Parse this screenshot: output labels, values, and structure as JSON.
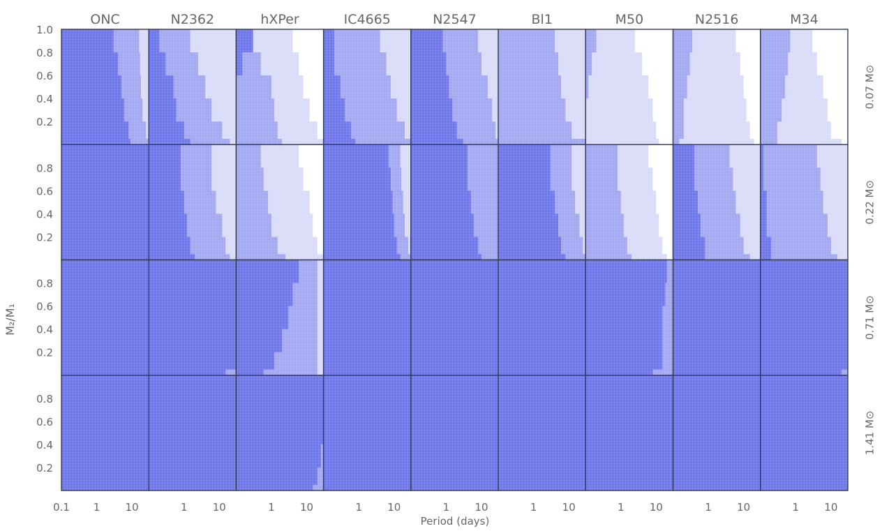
{
  "chart_data": {
    "type": "heatmap",
    "columns": [
      "ONC",
      "N2362",
      "hXPer",
      "IC4665",
      "N2547",
      "Bl1",
      "M50",
      "N2516",
      "M34"
    ],
    "rows": [
      "0.07 M⊙",
      "0.22 M⊙",
      "0.71 M⊙",
      "1.41 M⊙"
    ],
    "xlabel": "Period (days)",
    "ylabel": "M₂/M₁",
    "xscale": "log",
    "xlim": [
      0.1,
      30
    ],
    "ylim": [
      0,
      1.0
    ],
    "x_ticks_first_column": [
      "0.1",
      "1",
      "10"
    ],
    "x_ticks_other_columns": [
      "1",
      "10"
    ],
    "y_ticks_top_row": [
      "1.0",
      "0.8",
      "0.6",
      "0.4",
      "0.2"
    ],
    "y_ticks_other_rows": [
      "0.8",
      "0.6",
      "0.4",
      "0.2"
    ],
    "shade_colors": {
      "level3": "#6f77f0",
      "level2": "#a3a8f4",
      "level1": "#d9dbfa",
      "level0": "#ffffff"
    },
    "boundary_q": [
      0.05,
      0.2,
      0.4,
      0.6,
      0.8,
      1.0
    ],
    "panels": [
      [
        {
          "b3": [
            9,
            8,
            6,
            5,
            4,
            3
          ],
          "b2": [
            30,
            25,
            20,
            18,
            17,
            16
          ],
          "b1": [
            30,
            30,
            30,
            30,
            30,
            30
          ]
        },
        {
          "b3": [
            1.5,
            1,
            0.6,
            0.5,
            0.3,
            0.2
          ],
          "b2": [
            20,
            12,
            6,
            4,
            2.5,
            1.5
          ],
          "b1": [
            30,
            30,
            30,
            30,
            30,
            30
          ]
        },
        {
          "b3": [
            0.1,
            0.1,
            0.1,
            0.1,
            0.15,
            0.3
          ],
          "b2": [
            2,
            1.5,
            1.2,
            1,
            0.5,
            0.3
          ],
          "b1": [
            30,
            20,
            12,
            8,
            6,
            4
          ]
        },
        {
          "b3": [
            0.8,
            0.6,
            0.4,
            0.3,
            0.2,
            0.2
          ],
          "b2": [
            30,
            20,
            12,
            8,
            6,
            4
          ],
          "b1": [
            30,
            30,
            30,
            30,
            30,
            30
          ]
        },
        {
          "b3": [
            3,
            2,
            1.5,
            1.2,
            1,
            0.8
          ],
          "b2": [
            30,
            25,
            20,
            15,
            10,
            8
          ],
          "b1": [
            30,
            30,
            30,
            30,
            30,
            30
          ]
        },
        {
          "b3": [
            0.1,
            0.1,
            0.1,
            0.1,
            0.1,
            0.1
          ],
          "b2": [
            30,
            12,
            8,
            6,
            5,
            4
          ],
          "b1": [
            30,
            30,
            30,
            30,
            30,
            30
          ]
        },
        {
          "b3": [
            0.1,
            0.1,
            0.1,
            0.1,
            0.1,
            0.1
          ],
          "b2": [
            0.1,
            0.1,
            0.1,
            0.12,
            0.15,
            0.2
          ],
          "b1": [
            12,
            10,
            8,
            6,
            4,
            2.5
          ]
        },
        {
          "b3": [
            0.1,
            0.1,
            0.1,
            0.1,
            0.1,
            0.1
          ],
          "b2": [
            0.15,
            0.2,
            0.2,
            0.25,
            0.3,
            0.35
          ],
          "b1": [
            20,
            15,
            12,
            10,
            8,
            6
          ]
        },
        {
          "b3": [
            0.1,
            0.1,
            0.1,
            0.1,
            0.1,
            0.1
          ],
          "b2": [
            0.3,
            0.3,
            0.4,
            0.5,
            0.6,
            0.7
          ],
          "b1": [
            20,
            10,
            8,
            6,
            4,
            3
          ]
        }
      ],
      [
        {
          "b3": [
            30,
            30,
            30,
            30,
            30,
            30
          ],
          "b2": [
            30,
            30,
            30,
            30,
            30,
            30
          ],
          "b1": [
            30,
            30,
            30,
            30,
            30,
            30
          ]
        },
        {
          "b3": [
            2,
            1.5,
            1.2,
            1,
            0.8,
            0.8
          ],
          "b2": [
            20,
            15,
            12,
            8,
            6,
            6
          ],
          "b1": [
            30,
            30,
            30,
            30,
            30,
            30
          ]
        },
        {
          "b3": [
            0.1,
            0.1,
            0.1,
            0.1,
            0.1,
            0.1
          ],
          "b2": [
            2.5,
            1.5,
            1,
            0.8,
            0.6,
            0.5
          ],
          "b1": [
            30,
            20,
            15,
            12,
            8,
            6
          ]
        },
        {
          "b3": [
            15,
            12,
            10,
            9,
            8,
            7
          ],
          "b2": [
            30,
            25,
            20,
            18,
            16,
            15
          ],
          "b1": [
            30,
            30,
            30,
            30,
            30,
            30
          ]
        },
        {
          "b3": [
            10,
            8,
            6,
            5,
            4,
            4
          ],
          "b2": [
            30,
            30,
            30,
            30,
            30,
            30
          ],
          "b1": [
            30,
            30,
            30,
            30,
            30,
            30
          ]
        },
        {
          "b3": [
            8,
            6,
            5,
            4,
            3,
            3
          ],
          "b2": [
            30,
            25,
            20,
            15,
            12,
            12
          ],
          "b1": [
            30,
            30,
            30,
            30,
            30,
            30
          ]
        },
        {
          "b3": [
            0.1,
            0.1,
            0.1,
            0.1,
            0.1,
            0.1
          ],
          "b2": [
            2,
            1.5,
            1.2,
            1,
            0.8,
            0.8
          ],
          "b1": [
            20,
            15,
            12,
            10,
            8,
            6
          ]
        },
        {
          "b3": [
            0.8,
            0.8,
            0.6,
            0.5,
            0.4,
            0.4
          ],
          "b2": [
            15,
            10,
            8,
            6,
            5,
            4
          ],
          "b1": [
            30,
            30,
            30,
            30,
            30,
            30
          ]
        },
        {
          "b3": [
            0.2,
            0.2,
            0.15,
            0.15,
            0.12,
            0.12
          ],
          "b2": [
            15,
            10,
            8,
            6,
            5,
            4
          ],
          "b1": [
            30,
            30,
            30,
            30,
            30,
            30
          ]
        }
      ],
      [
        {
          "b3": [
            30,
            30,
            30,
            30,
            30,
            30
          ],
          "b2": [
            30,
            30,
            30,
            30,
            30,
            30
          ],
          "b1": [
            30,
            30,
            30,
            30,
            30,
            30
          ]
        },
        {
          "b3": [
            15,
            30,
            30,
            30,
            30,
            30
          ],
          "b2": [
            30,
            30,
            30,
            30,
            30,
            30
          ],
          "b1": [
            30,
            30,
            30,
            30,
            30,
            30
          ]
        },
        {
          "b3": [
            0.6,
            1.2,
            2,
            3,
            4,
            6
          ],
          "b2": [
            20,
            20,
            20,
            20,
            20,
            20
          ],
          "b1": [
            30,
            30,
            30,
            30,
            30,
            30
          ]
        },
        {
          "b3": [
            30,
            30,
            30,
            30,
            30,
            30
          ],
          "b2": [
            30,
            30,
            30,
            30,
            30,
            30
          ],
          "b1": [
            30,
            30,
            30,
            30,
            30,
            30
          ]
        },
        {
          "b3": [
            30,
            30,
            30,
            30,
            30,
            30
          ],
          "b2": [
            30,
            30,
            30,
            30,
            30,
            30
          ],
          "b1": [
            30,
            30,
            30,
            30,
            30,
            30
          ]
        },
        {
          "b3": [
            30,
            30,
            30,
            30,
            30,
            30
          ],
          "b2": [
            30,
            30,
            30,
            30,
            30,
            30
          ],
          "b1": [
            30,
            30,
            30,
            30,
            30,
            30
          ]
        },
        {
          "b3": [
            8,
            15,
            15,
            15,
            18,
            20
          ],
          "b2": [
            30,
            30,
            30,
            30,
            30,
            30
          ],
          "b1": [
            30,
            30,
            30,
            30,
            30,
            30
          ]
        },
        {
          "b3": [
            30,
            30,
            30,
            30,
            30,
            30
          ],
          "b2": [
            30,
            30,
            30,
            30,
            30,
            30
          ],
          "b1": [
            30,
            30,
            30,
            30,
            30,
            30
          ]
        },
        {
          "b3": [
            20,
            30,
            30,
            30,
            30,
            30
          ],
          "b2": [
            30,
            30,
            30,
            30,
            30,
            30
          ],
          "b1": [
            30,
            30,
            30,
            30,
            30,
            30
          ]
        }
      ],
      [
        {
          "b3": [
            30,
            30,
            30,
            30,
            30,
            30
          ],
          "b2": [
            30,
            30,
            30,
            30,
            30,
            30
          ],
          "b1": [
            30,
            30,
            30,
            30,
            30,
            30
          ]
        },
        {
          "b3": [
            30,
            30,
            30,
            30,
            30,
            30
          ],
          "b2": [
            30,
            30,
            30,
            30,
            30,
            30
          ],
          "b1": [
            30,
            30,
            30,
            30,
            30,
            30
          ]
        },
        {
          "b3": [
            15,
            20,
            25,
            30,
            30,
            30
          ],
          "b2": [
            30,
            30,
            30,
            30,
            30,
            30
          ],
          "b1": [
            30,
            30,
            30,
            30,
            30,
            30
          ]
        },
        {
          "b3": [
            30,
            30,
            30,
            30,
            30,
            30
          ],
          "b2": [
            30,
            30,
            30,
            30,
            30,
            30
          ],
          "b1": [
            30,
            30,
            30,
            30,
            30,
            30
          ]
        },
        {
          "b3": [
            30,
            30,
            30,
            30,
            30,
            30
          ],
          "b2": [
            30,
            30,
            30,
            30,
            30,
            30
          ],
          "b1": [
            30,
            30,
            30,
            30,
            30,
            30
          ]
        },
        {
          "b3": [
            30,
            30,
            30,
            30,
            30,
            30
          ],
          "b2": [
            30,
            30,
            30,
            30,
            30,
            30
          ],
          "b1": [
            30,
            30,
            30,
            30,
            30,
            30
          ]
        },
        {
          "b3": [
            30,
            30,
            30,
            30,
            30,
            30
          ],
          "b2": [
            30,
            30,
            30,
            30,
            30,
            30
          ],
          "b1": [
            30,
            30,
            30,
            30,
            30,
            30
          ]
        },
        {
          "b3": [
            30,
            30,
            30,
            30,
            30,
            30
          ],
          "b2": [
            30,
            30,
            30,
            30,
            30,
            30
          ],
          "b1": [
            30,
            30,
            30,
            30,
            30,
            30
          ]
        },
        {
          "b3": [
            30,
            30,
            30,
            30,
            30,
            30
          ],
          "b2": [
            30,
            30,
            30,
            30,
            30,
            30
          ],
          "b1": [
            30,
            30,
            30,
            30,
            30,
            30
          ]
        }
      ]
    ]
  }
}
